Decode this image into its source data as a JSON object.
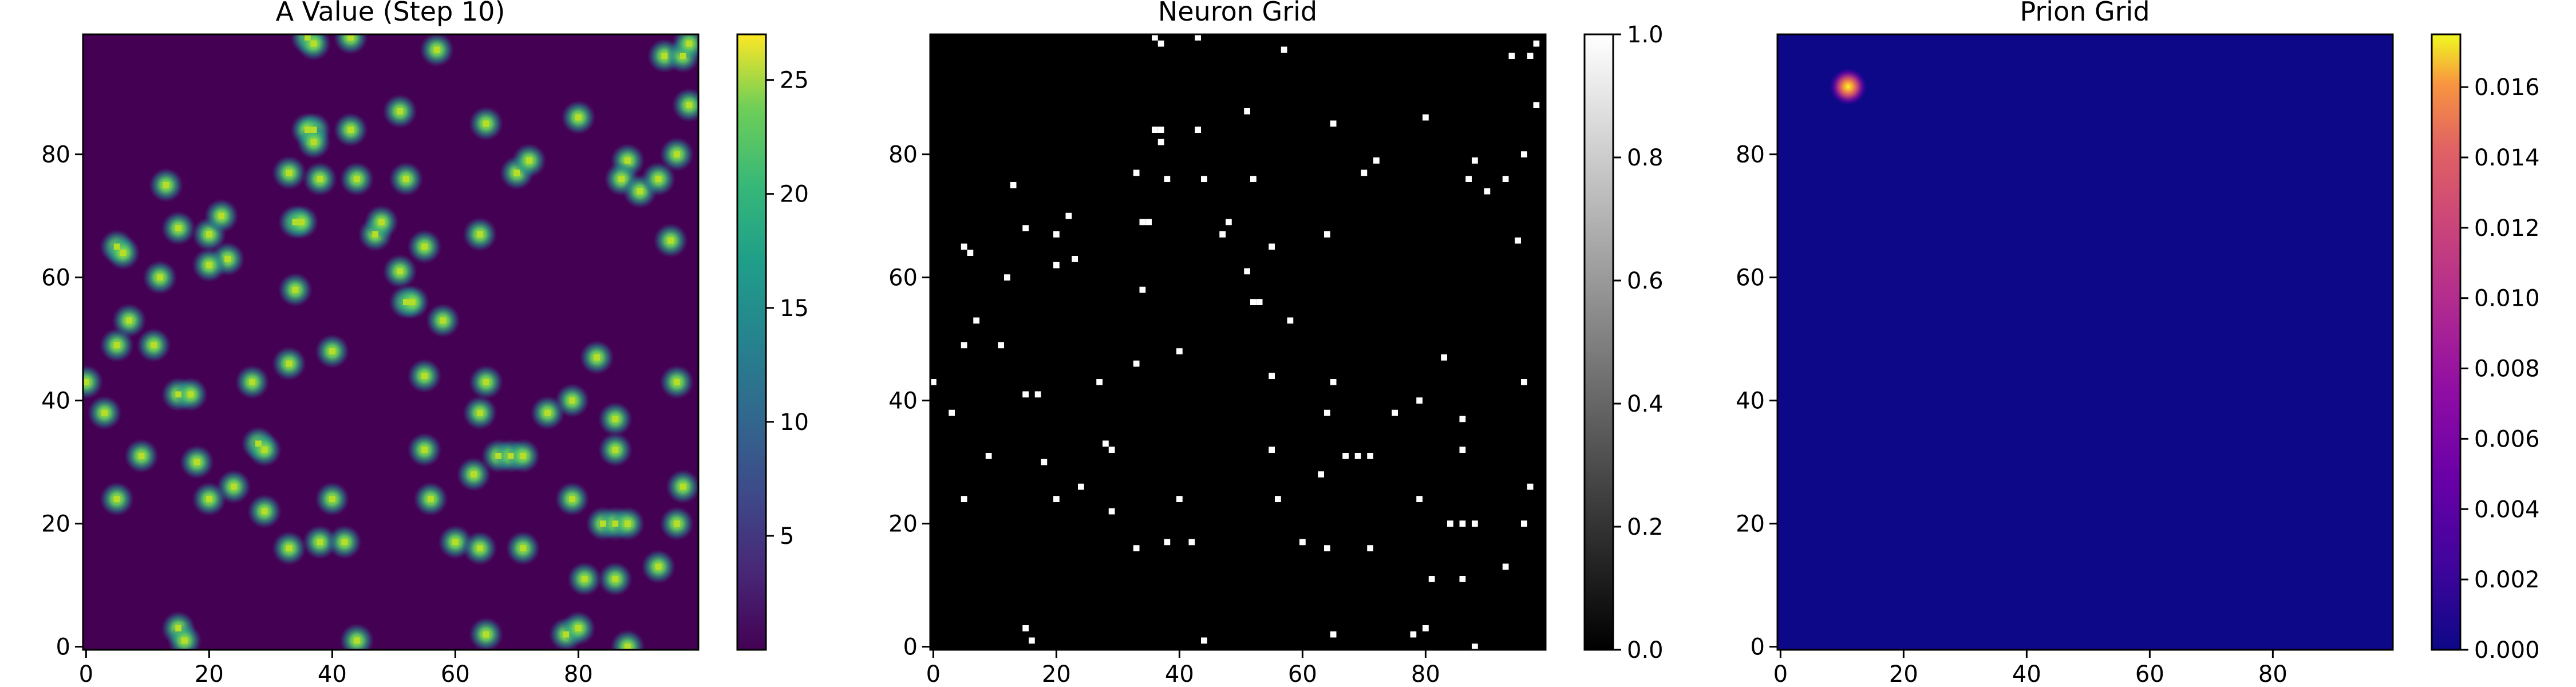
{
  "figure": {
    "panels": [
      {
        "title": "A Value (Step 10)"
      },
      {
        "title": "Neuron Grid"
      },
      {
        "title": "Prion Grid"
      }
    ]
  },
  "chart_data": [
    {
      "type": "heatmap",
      "title": "A Value (Step 10)",
      "colormap": "viridis",
      "grid_size": [
        100,
        100
      ],
      "origin": "lower",
      "xlim": [
        0,
        99
      ],
      "ylim": [
        0,
        99
      ],
      "x_ticks": [
        0,
        20,
        40,
        60,
        80
      ],
      "y_ticks": [
        0,
        20,
        40,
        60,
        80
      ],
      "colorbar": {
        "range": [
          0,
          27
        ],
        "ticks": [
          5,
          10,
          15,
          20,
          25
        ]
      },
      "background_color": "#440154",
      "blob_color": "#5ec962",
      "peak_color": "#fde725",
      "peak_value": 27,
      "neuron_positions": [
        [
          36,
          99
        ],
        [
          37,
          98
        ],
        [
          43,
          99
        ],
        [
          57,
          97
        ],
        [
          94,
          96
        ],
        [
          97,
          96
        ],
        [
          98,
          98
        ],
        [
          98,
          88
        ],
        [
          37,
          84
        ],
        [
          36,
          84
        ],
        [
          37,
          82
        ],
        [
          43,
          84
        ],
        [
          51,
          87
        ],
        [
          65,
          85
        ],
        [
          80,
          86
        ],
        [
          96,
          80
        ],
        [
          88,
          79
        ],
        [
          87,
          76
        ],
        [
          90,
          74
        ],
        [
          93,
          76
        ],
        [
          70,
          77
        ],
        [
          72,
          79
        ],
        [
          13,
          75
        ],
        [
          33,
          77
        ],
        [
          38,
          76
        ],
        [
          44,
          76
        ],
        [
          52,
          76
        ],
        [
          15,
          68
        ],
        [
          20,
          67
        ],
        [
          22,
          70
        ],
        [
          23,
          63
        ],
        [
          20,
          62
        ],
        [
          5,
          65
        ],
        [
          6,
          64
        ],
        [
          34,
          69
        ],
        [
          35,
          69
        ],
        [
          47,
          67
        ],
        [
          48,
          69
        ],
        [
          55,
          65
        ],
        [
          64,
          67
        ],
        [
          51,
          61
        ],
        [
          52,
          56
        ],
        [
          53,
          56
        ],
        [
          12,
          60
        ],
        [
          34,
          58
        ],
        [
          7,
          53
        ],
        [
          58,
          53
        ],
        [
          95,
          66
        ],
        [
          5,
          49
        ],
        [
          11,
          49
        ],
        [
          33,
          46
        ],
        [
          40,
          48
        ],
        [
          55,
          44
        ],
        [
          65,
          43
        ],
        [
          83,
          47
        ],
        [
          96,
          43
        ],
        [
          15,
          41
        ],
        [
          17,
          41
        ],
        [
          27,
          43
        ],
        [
          0,
          43
        ],
        [
          3,
          38
        ],
        [
          64,
          38
        ],
        [
          75,
          38
        ],
        [
          79,
          40
        ],
        [
          86,
          37
        ],
        [
          86,
          32
        ],
        [
          28,
          33
        ],
        [
          29,
          32
        ],
        [
          55,
          32
        ],
        [
          67,
          31
        ],
        [
          69,
          31
        ],
        [
          71,
          31
        ],
        [
          63,
          28
        ],
        [
          9,
          31
        ],
        [
          18,
          30
        ],
        [
          24,
          26
        ],
        [
          29,
          22
        ],
        [
          5,
          24
        ],
        [
          20,
          24
        ],
        [
          40,
          24
        ],
        [
          56,
          24
        ],
        [
          79,
          24
        ],
        [
          97,
          26
        ],
        [
          33,
          16
        ],
        [
          38,
          17
        ],
        [
          42,
          17
        ],
        [
          60,
          17
        ],
        [
          64,
          16
        ],
        [
          71,
          16
        ],
        [
          84,
          20
        ],
        [
          86,
          20
        ],
        [
          88,
          20
        ],
        [
          96,
          20
        ],
        [
          81,
          11
        ],
        [
          86,
          11
        ],
        [
          93,
          13
        ],
        [
          15,
          3
        ],
        [
          16,
          1
        ],
        [
          44,
          1
        ],
        [
          65,
          2
        ],
        [
          78,
          2
        ],
        [
          80,
          3
        ],
        [
          88,
          0
        ]
      ]
    },
    {
      "type": "heatmap",
      "title": "Neuron Grid",
      "colormap": "gray",
      "grid_size": [
        100,
        100
      ],
      "origin": "lower",
      "xlim": [
        0,
        99
      ],
      "ylim": [
        0,
        99
      ],
      "x_ticks": [
        0,
        20,
        40,
        60,
        80
      ],
      "y_ticks": [
        0,
        20,
        40,
        60,
        80
      ],
      "colorbar": {
        "range": [
          0,
          1
        ],
        "ticks": [
          "0.0",
          "0.2",
          "0.4",
          "0.6",
          "0.8",
          "1.0"
        ]
      },
      "background_color": "#000000",
      "neuron_color": "#ffffff",
      "note": "same neuron positions as panel 1"
    },
    {
      "type": "heatmap",
      "title": "Prion Grid",
      "colormap": "plasma",
      "grid_size": [
        100,
        100
      ],
      "origin": "lower",
      "xlim": [
        0,
        99
      ],
      "ylim": [
        0,
        99
      ],
      "x_ticks": [
        0,
        20,
        40,
        60,
        80
      ],
      "y_ticks": [
        0,
        20,
        40,
        60,
        80
      ],
      "colorbar": {
        "range": [
          0,
          0.0175
        ],
        "ticks": [
          "0.000",
          "0.002",
          "0.004",
          "0.006",
          "0.008",
          "0.010",
          "0.012",
          "0.014",
          "0.016"
        ]
      },
      "background_color": "#0d0887",
      "hotspot": {
        "x": 11,
        "y": 91,
        "peak": 0.0172
      }
    }
  ]
}
